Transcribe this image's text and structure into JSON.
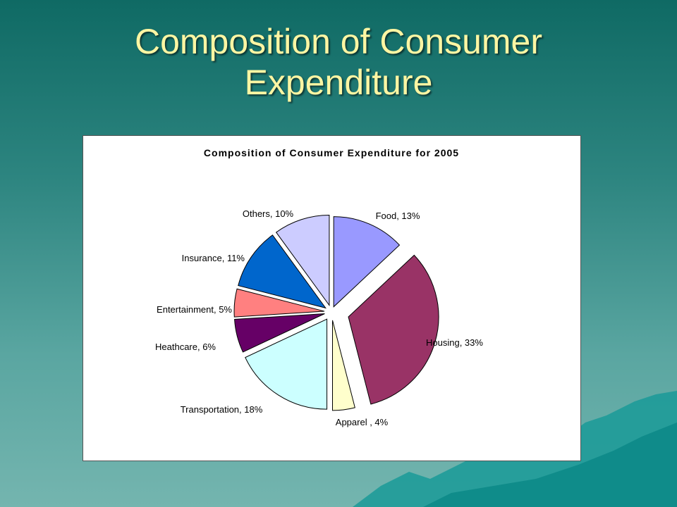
{
  "slide": {
    "title_line1": "Composition of Consumer",
    "title_line2": "Expenditure"
  },
  "colors": {
    "title": "#fdf6a3",
    "background_top": "#0f6a64",
    "background_bottom": "#74b5af"
  },
  "chart_data": {
    "type": "pie",
    "title": "Composition of Consumer Expenditure for 2005",
    "exploded": true,
    "slices": [
      {
        "label": "Food, 13%",
        "value": 13,
        "color": "#9999ff"
      },
      {
        "label": "Housing, 33%",
        "value": 33,
        "color": "#993366"
      },
      {
        "label": "Apparel , 4%",
        "value": 4,
        "color": "#ffffcc"
      },
      {
        "label": "Transportation, 18%",
        "value": 18,
        "color": "#ccffff"
      },
      {
        "label": "Heathcare, 6%",
        "value": 6,
        "color": "#660066"
      },
      {
        "label": "Entertainment, 5%",
        "value": 5,
        "color": "#ff8080"
      },
      {
        "label": "Insurance, 11%",
        "value": 11,
        "color": "#0066cc"
      },
      {
        "label": "Others, 10%",
        "value": 10,
        "color": "#ccccff"
      }
    ]
  }
}
